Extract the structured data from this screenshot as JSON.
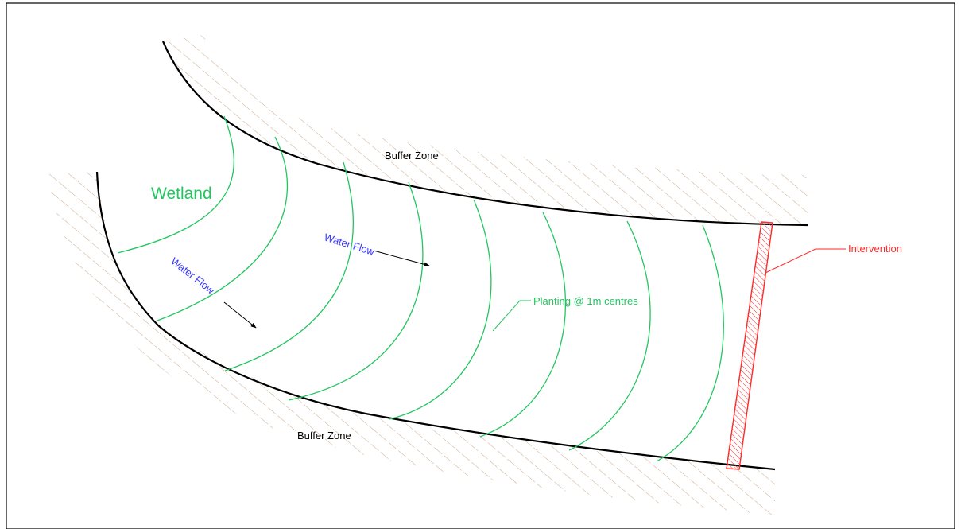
{
  "labels": {
    "buffer_zone_top": "Buffer Zone",
    "buffer_zone_bottom": "Buffer Zone",
    "wetland": "Wetland",
    "water_flow_1": "Water Flow",
    "water_flow_2": "Water Flow",
    "planting": "Planting @ 1m centres",
    "intervention": "Intervention"
  },
  "colors": {
    "bank_line": "#000000",
    "hatch": "#c9a98a",
    "planting": "#22c55e",
    "water_flow_text": "#3a3aff",
    "intervention": "#ff2a2a",
    "wetland_text": "#22c55e"
  }
}
